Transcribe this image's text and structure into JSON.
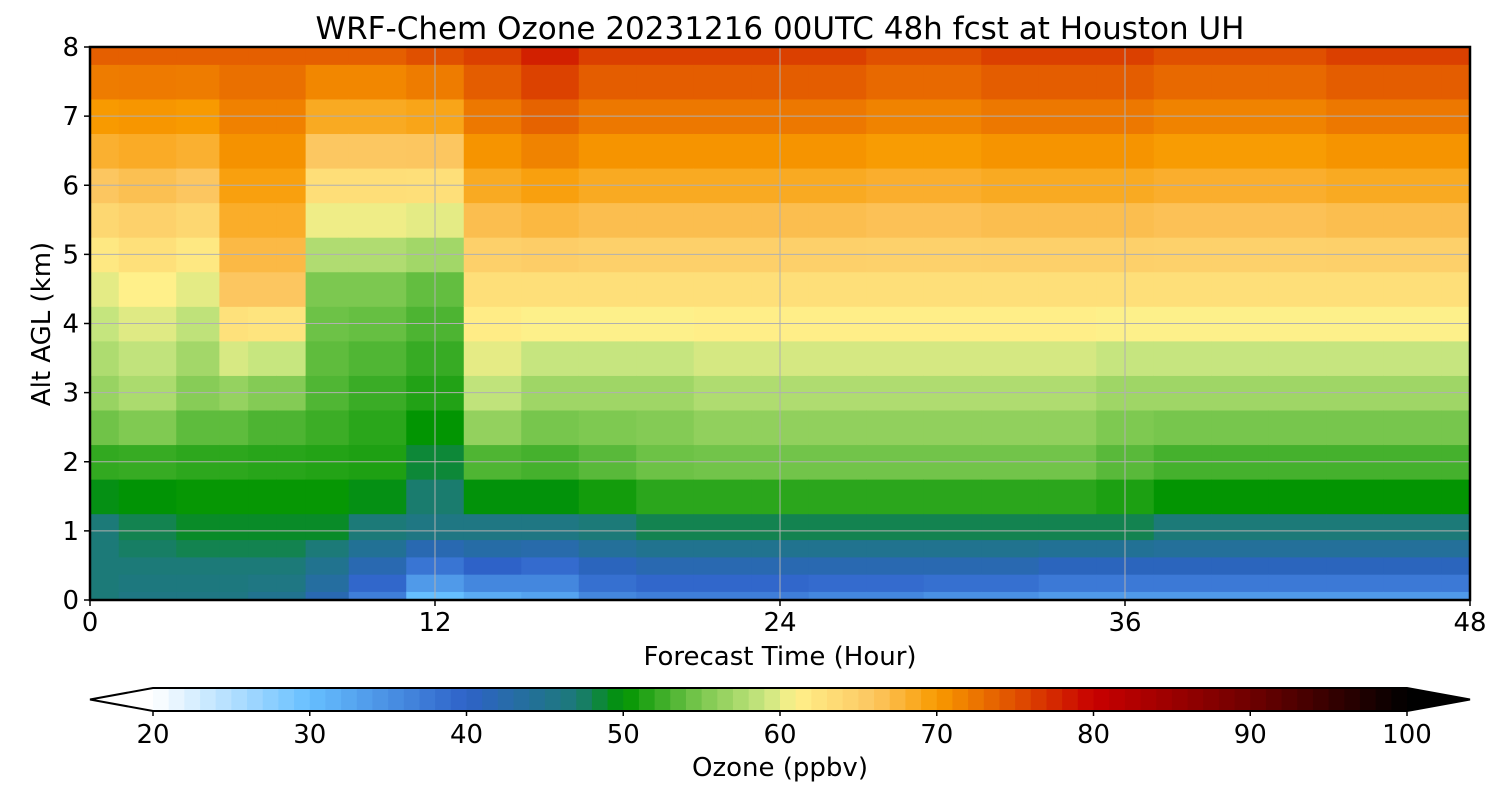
{
  "chart_data": {
    "type": "heatmap",
    "title": "WRF-Chem Ozone  20231216 00UTC 48h fcst at Houston UH",
    "xlabel": "Forecast Time (Hour)",
    "ylabel": "Alt AGL (km)",
    "xlim": [
      0,
      48
    ],
    "ylim": [
      0,
      8
    ],
    "x_ticks": [
      0,
      12,
      24,
      36,
      48
    ],
    "y_ticks": [
      0,
      1,
      2,
      3,
      4,
      5,
      6,
      7,
      8
    ],
    "grid": true,
    "colorbar": {
      "label": "Ozone  (ppbv)",
      "range": [
        20,
        100
      ],
      "ticks": [
        20,
        30,
        40,
        50,
        60,
        70,
        80,
        90,
        100
      ],
      "extend": "both",
      "stops": [
        {
          "v": 20,
          "c": "#ffffff"
        },
        {
          "v": 30,
          "c": "#66bfff"
        },
        {
          "v": 40,
          "c": "#2e62c8"
        },
        {
          "v": 47,
          "c": "#1c7a78"
        },
        {
          "v": 50,
          "c": "#009400"
        },
        {
          "v": 55,
          "c": "#7cc850"
        },
        {
          "v": 59,
          "c": "#c8e680"
        },
        {
          "v": 61,
          "c": "#fff08a"
        },
        {
          "v": 66,
          "c": "#fcc660"
        },
        {
          "v": 70,
          "c": "#f89a00"
        },
        {
          "v": 75,
          "c": "#e05000"
        },
        {
          "v": 80,
          "c": "#c80000"
        },
        {
          "v": 90,
          "c": "#6e0000"
        },
        {
          "v": 100,
          "c": "#000000"
        }
      ]
    },
    "altitudes_km": [
      0,
      0.25,
      0.5,
      0.75,
      1,
      1.5,
      2,
      2.5,
      3,
      3.5,
      4,
      4.5,
      5,
      5.5,
      6,
      6.5,
      7,
      7.5,
      8
    ],
    "forecast_hours": [
      0,
      2,
      4,
      5,
      6,
      7,
      8,
      10,
      12,
      14,
      16,
      18,
      20,
      22,
      24,
      26,
      28,
      30,
      32,
      34,
      36,
      38,
      40,
      42,
      44,
      46,
      48
    ],
    "ozone_ppbv": [
      [
        47,
        47,
        47,
        51,
        56,
        60,
        74
      ],
      [
        46,
        47,
        48,
        51,
        57,
        61,
        74
      ],
      [
        46,
        47,
        49,
        51,
        55,
        60,
        74
      ],
      [
        46,
        47,
        49,
        51,
        55,
        66,
        74
      ],
      [
        45,
        47,
        49,
        51,
        54,
        66,
        74
      ],
      [
        45,
        47,
        49,
        51,
        54,
        66,
        74
      ],
      [
        42,
        45,
        49,
        51,
        53,
        55,
        74
      ],
      [
        37,
        42,
        47,
        51,
        52,
        55,
        74
      ],
      [
        30,
        38,
        46,
        48,
        51,
        54,
        75
      ],
      [
        32,
        40,
        46,
        52,
        58,
        63,
        76
      ],
      [
        33,
        39,
        46,
        52,
        56,
        63,
        78
      ],
      [
        36,
        41,
        47,
        53,
        56,
        63,
        76
      ],
      [
        37,
        42,
        48,
        54,
        56,
        63,
        76
      ],
      [
        37,
        42,
        48,
        54,
        57,
        63,
        76
      ],
      [
        37,
        42,
        48,
        54,
        57,
        63,
        76
      ],
      [
        36,
        42,
        48,
        54,
        57,
        63,
        76
      ],
      [
        36,
        42,
        48,
        54,
        57,
        63,
        75
      ],
      [
        35,
        42,
        48,
        54,
        57,
        63,
        75
      ],
      [
        35,
        42,
        48,
        54,
        57,
        63,
        76
      ],
      [
        34,
        41,
        48,
        54,
        57,
        63,
        76
      ],
      [
        34,
        41,
        48,
        53,
        56,
        63,
        76
      ],
      [
        34,
        41,
        47,
        52,
        56,
        63,
        75
      ],
      [
        34,
        41,
        47,
        52,
        56,
        63,
        75
      ],
      [
        34,
        41,
        47,
        52,
        56,
        63,
        75
      ],
      [
        34,
        41,
        47,
        52,
        56,
        63,
        76
      ],
      [
        34,
        41,
        47,
        52,
        56,
        63,
        76
      ],
      [
        34,
        41,
        47,
        52,
        56,
        63,
        76
      ]
    ],
    "ozone_ppbv_note_columns": "not printed"
  }
}
